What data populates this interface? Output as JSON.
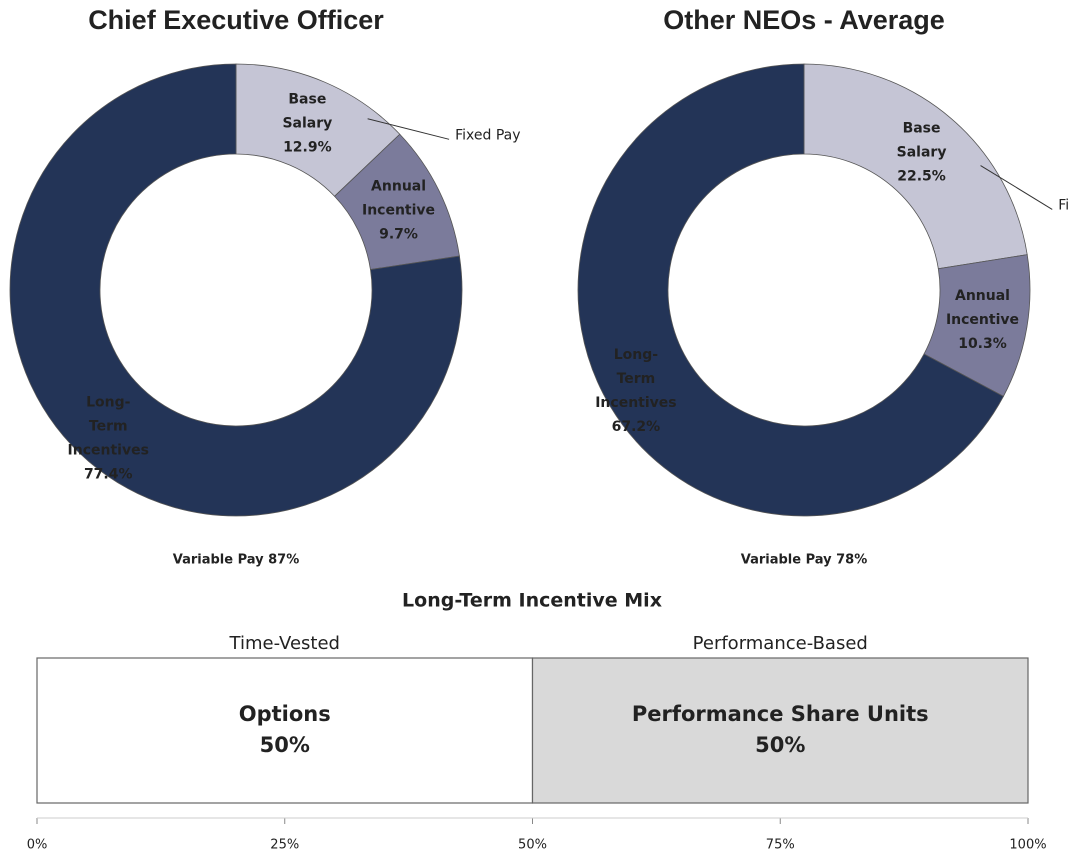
{
  "chart_data": [
    {
      "type": "donut",
      "title": "Chief Executive Officer",
      "categories": [
        "Base Salary",
        "Annual Incentive",
        "Long-Term Incentives"
      ],
      "values": [
        12.9,
        9.7,
        77.4
      ],
      "value_labels": [
        "12.9%",
        "9.7%",
        "77.4%"
      ],
      "colors": [
        "#c5c5d5",
        "#7b7b9b",
        "#233457"
      ],
      "annotation": "Fixed Pay",
      "footnote": "Variable Pay 87%"
    },
    {
      "type": "donut",
      "title": "Other NEOs - Average",
      "categories": [
        "Base Salary",
        "Annual Incentive",
        "Long-Term Incentives"
      ],
      "values": [
        22.5,
        10.3,
        67.2
      ],
      "value_labels": [
        "22.5%",
        "10.3%",
        "67.2%"
      ],
      "colors": [
        "#c5c5d5",
        "#7b7b9b",
        "#233457"
      ],
      "annotation": "Fixed Pay",
      "footnote": "Variable Pay 78%"
    },
    {
      "type": "stacked_bar",
      "title": "Long-Term Incentive Mix",
      "series": [
        {
          "name": "Options",
          "group": "Time-Vested",
          "color": "#ffffff",
          "values": [
            50
          ],
          "value_labels": [
            "50%"
          ]
        },
        {
          "name": "Performance Share Units",
          "group": "Performance-Based",
          "color": "#d9d9d9",
          "values": [
            50
          ],
          "value_labels": [
            "50%"
          ]
        }
      ],
      "xlim": [
        0,
        100
      ],
      "xticks": [
        {
          "value": 0,
          "label": "0%"
        },
        {
          "value": 25,
          "label": "25%"
        },
        {
          "value": 50,
          "label": "50%"
        },
        {
          "value": 75,
          "label": "75%"
        },
        {
          "value": 100,
          "label": "100%"
        }
      ]
    }
  ]
}
